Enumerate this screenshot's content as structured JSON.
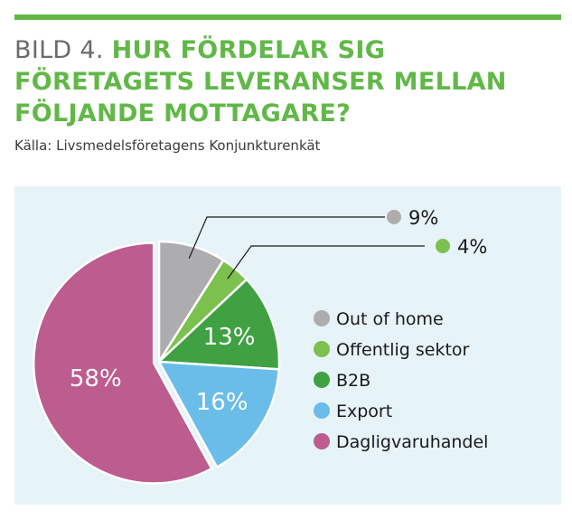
{
  "header": {
    "title_prefix": "BILD 4.",
    "title_main": "HUR FÖRDELAR SIG FÖRETAGETS LEVERANSER MELLAN FÖLJANDE MOTTAGARE?",
    "source": "Källa: Livsmedelsföretagens Konjunkturenkät"
  },
  "colors": {
    "accent": "#61b847",
    "panel": "#e6f3f9"
  },
  "chart_data": {
    "type": "pie",
    "title": "HUR FÖRDELAR SIG FÖRETAGETS LEVERANSER MELLAN FÖLJANDE MOTTAGARE?",
    "slices": [
      {
        "name": "Out of home",
        "value": 9,
        "label": "9%",
        "color": "#adadaf"
      },
      {
        "name": "Offentlig sektor",
        "value": 4,
        "label": "4%",
        "color": "#7cc04e"
      },
      {
        "name": "B2B",
        "value": 13,
        "label": "13%",
        "color": "#3fa142"
      },
      {
        "name": "Export",
        "value": 16,
        "label": "16%",
        "color": "#6abde8"
      },
      {
        "name": "Dagligvaruhandel",
        "value": 58,
        "label": "58%",
        "color": "#bd5c8f"
      }
    ],
    "legend_position": "right"
  }
}
